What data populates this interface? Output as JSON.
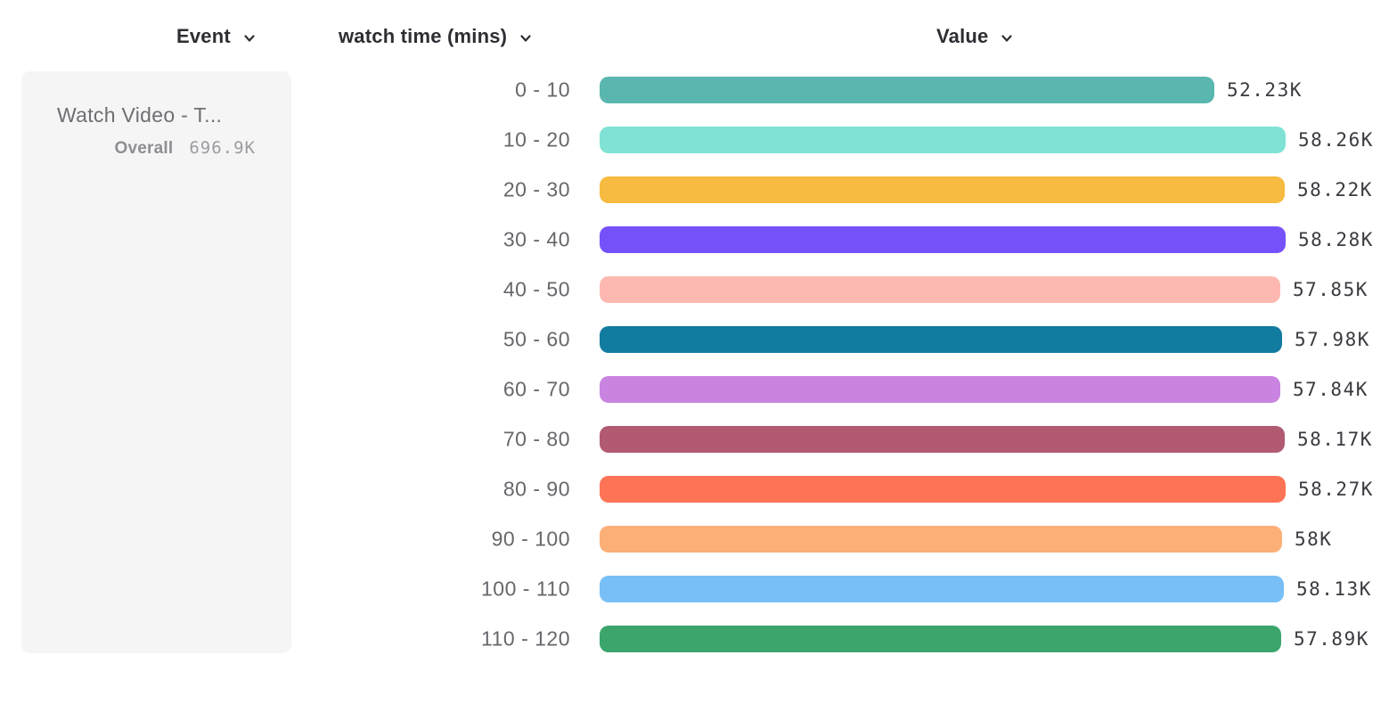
{
  "header": {
    "event_label": "Event",
    "breakdown_label": "watch time (mins)",
    "value_label": "Value"
  },
  "event_card": {
    "name": "Watch Video - T...",
    "overall_label": "Overall",
    "overall_value": "696.9K"
  },
  "colors": {
    "card_background": "#f5f5f6",
    "header_text": "#2d2d33",
    "category_text": "#67676c",
    "value_text": "#3a3a40"
  },
  "chart_data": {
    "type": "bar",
    "orientation": "horizontal",
    "title": "",
    "xlabel": "Value",
    "ylabel": "watch time (mins)",
    "categories": [
      "0 - 10",
      "10 - 20",
      "20 - 30",
      "30 - 40",
      "40 - 50",
      "50 - 60",
      "60 - 70",
      "70 - 80",
      "80 - 90",
      "90 - 100",
      "100 - 110",
      "110 - 120"
    ],
    "values": [
      52.23,
      58.26,
      58.22,
      58.28,
      57.85,
      57.98,
      57.84,
      58.17,
      58.27,
      58.0,
      58.13,
      57.89
    ],
    "value_unit": "K",
    "value_labels": [
      "52.23K",
      "58.26K",
      "58.22K",
      "58.28K",
      "57.85K",
      "57.98K",
      "57.84K",
      "58.17K",
      "58.27K",
      "58K",
      "58.13K",
      "57.89K"
    ],
    "bar_colors": [
      "#5ab7b0",
      "#7fe2d5",
      "#f6bb40",
      "#7551fa",
      "#fdb9b1",
      "#127ba0",
      "#c983e0",
      "#b15a72",
      "#fd7356",
      "#fcb077",
      "#77bff6",
      "#3ba56c"
    ],
    "xlim": [
      0,
      58.28
    ],
    "grid": false,
    "legend": false
  }
}
